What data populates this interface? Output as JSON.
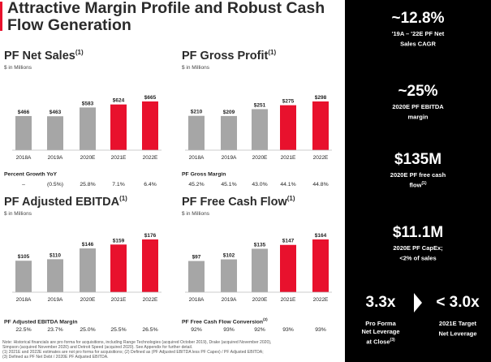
{
  "title": "Attractive Margin Profile and Robust Cash Flow Generation",
  "colors": {
    "actual": "#a6a6a6",
    "estimate": "#e8112d",
    "sidebar_bg": "#000000",
    "accent": "#e8112d"
  },
  "chart_data": [
    {
      "type": "bar",
      "title": "PF Net Sales",
      "title_note": "(1)",
      "unit": "$ in Millions",
      "categories": [
        "2018A",
        "2019A",
        "2020E",
        "2021E",
        "2022E"
      ],
      "values": [
        466,
        463,
        583,
        624,
        665
      ],
      "value_labels": [
        "$466",
        "$463",
        "$583",
        "$624",
        "$665"
      ],
      "highlight": [
        false,
        false,
        false,
        true,
        true
      ],
      "metric": {
        "label": "Percent Growth YoY",
        "note": "",
        "values": [
          "–",
          "(0.5%)",
          "25.8%",
          "7.1%",
          "6.4%"
        ]
      }
    },
    {
      "type": "bar",
      "title": "PF Gross Profit",
      "title_note": "(1)",
      "unit": "$ in Millions",
      "categories": [
        "2018A",
        "2019A",
        "2020E",
        "2021E",
        "2022E"
      ],
      "values": [
        210,
        209,
        251,
        275,
        298
      ],
      "value_labels": [
        "$210",
        "$209",
        "$251",
        "$275",
        "$298"
      ],
      "highlight": [
        false,
        false,
        false,
        true,
        true
      ],
      "metric": {
        "label": "PF Gross Margin",
        "note": "",
        "values": [
          "45.2%",
          "45.1%",
          "43.0%",
          "44.1%",
          "44.8%"
        ]
      }
    },
    {
      "type": "bar",
      "title": "PF Adjusted EBITDA",
      "title_note": "(1)",
      "unit": "$ in Millions",
      "categories": [
        "2018A",
        "2019A",
        "2020E",
        "2021E",
        "2022E"
      ],
      "values": [
        105,
        110,
        146,
        159,
        176
      ],
      "value_labels": [
        "$105",
        "$110",
        "$146",
        "$159",
        "$176"
      ],
      "highlight": [
        false,
        false,
        false,
        true,
        true
      ],
      "metric": {
        "label": "PF Adjusted EBITDA Margin",
        "note": "",
        "values": [
          "22.5%",
          "23.7%",
          "25.0%",
          "25.5%",
          "26.5%"
        ]
      }
    },
    {
      "type": "bar",
      "title": "PF Free Cash Flow",
      "title_note": "(1)",
      "unit": "$ in Millions",
      "categories": [
        "2018A",
        "2019A",
        "2020E",
        "2021E",
        "2022E"
      ],
      "values": [
        97,
        102,
        135,
        147,
        164
      ],
      "value_labels": [
        "$97",
        "$102",
        "$135",
        "$147",
        "$164"
      ],
      "highlight": [
        false,
        false,
        false,
        true,
        true
      ],
      "metric": {
        "label": "PF Free Cash Flow Conversion",
        "note": "(2)",
        "values": [
          "92%",
          "93%",
          "92%",
          "93%",
          "93%"
        ]
      }
    }
  ],
  "footnotes": [
    "Note: Historical financials are pro forma for acquisitions, including Range Technologies (acquired October 2019), Drake (acquired November 2020),",
    "Simpson (acquired November 2020) and Detroit Speed (acquired 2020). See Appendix for further detail.",
    "(1) 2021E and 2022E estimates are not pro forma for acquisitions; (2) Defined as (PF Adjusted EBITDA less PF Capex) / PF Adjusted EBITDA;",
    "(3) Defined as PF Net Debt / 2020E PF Adjusted EBITDA."
  ],
  "sidebar": {
    "kpis": [
      {
        "value": "~12.8%",
        "label_lines": [
          "'19A – '22E PF Net",
          "Sales CAGR"
        ],
        "note": ""
      },
      {
        "value": "~25%",
        "label_lines": [
          "2020E PF EBITDA",
          "margin"
        ],
        "note": ""
      },
      {
        "value": "$135M",
        "label_lines": [
          "2020E PF free cash",
          "flow"
        ],
        "note": "(1)"
      },
      {
        "value": "$11.1M",
        "label_lines": [
          "2020E PF CapEx;",
          "<2% of sales"
        ],
        "note": ""
      }
    ],
    "leverage": [
      {
        "value": "3.3x",
        "label_lines": [
          "Pro Forma",
          "Net Leverage",
          "at Close"
        ],
        "note": "(3)"
      },
      {
        "value": "< 3.0x",
        "label_lines": [
          "2021E Target",
          "Net Leverage"
        ],
        "note": ""
      }
    ]
  }
}
